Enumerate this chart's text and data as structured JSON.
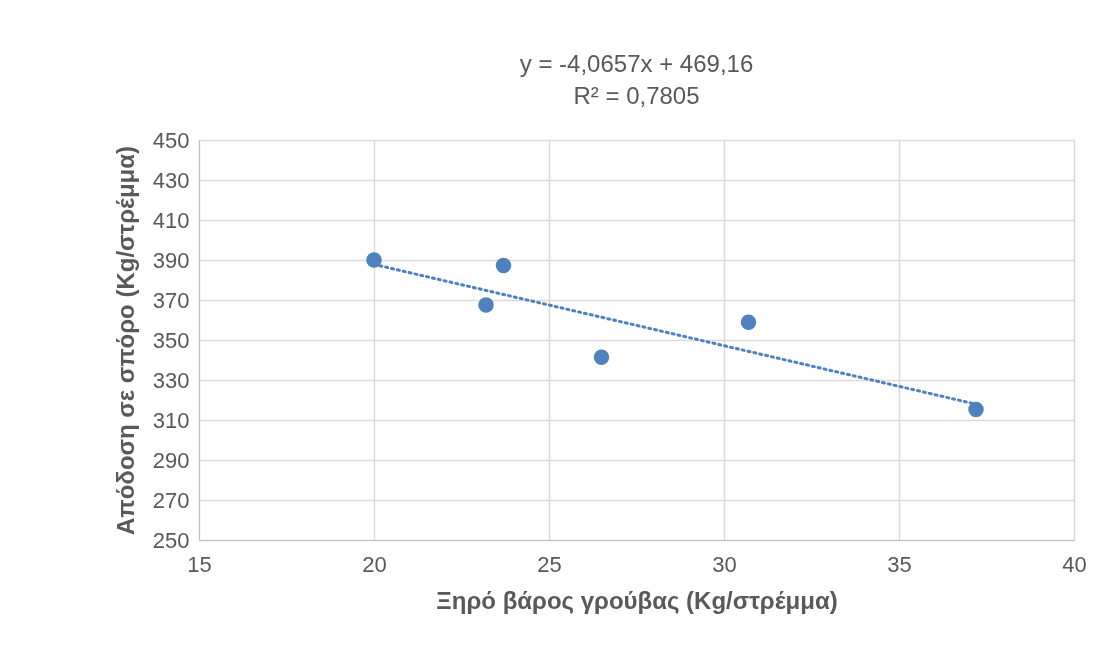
{
  "chart_data": {
    "type": "scatter",
    "title": "y = -4,0657x + 469,16",
    "subtitle": "R² = 0,7805",
    "xlabel": "Ξηρό βάρος γρούβας (Kg/στρέμμα)",
    "ylabel": "Απόδοση σε σπόρο (Kg/στρέμμα)",
    "xlim": [
      15,
      40
    ],
    "xticks": [
      15,
      20,
      25,
      30,
      35,
      40
    ],
    "ylim": [
      250,
      450
    ],
    "yticks": [
      250,
      270,
      290,
      310,
      330,
      350,
      370,
      390,
      410,
      430,
      450
    ],
    "grid": true,
    "series": [
      {
        "color": "#4f81bd",
        "marker": "circle",
        "x": [
          20.0,
          23.2,
          23.7,
          26.5,
          30.7,
          37.2
        ],
        "values": [
          390,
          367.5,
          387.2,
          341.4,
          358.9,
          315.3
        ]
      },
      {
        "type": "line",
        "color": "#4f81bd",
        "line_style": "dotted",
        "marker": "none",
        "x": [
          20.0,
          37.2
        ],
        "values": [
          387.8,
          317.9
        ]
      }
    ]
  }
}
